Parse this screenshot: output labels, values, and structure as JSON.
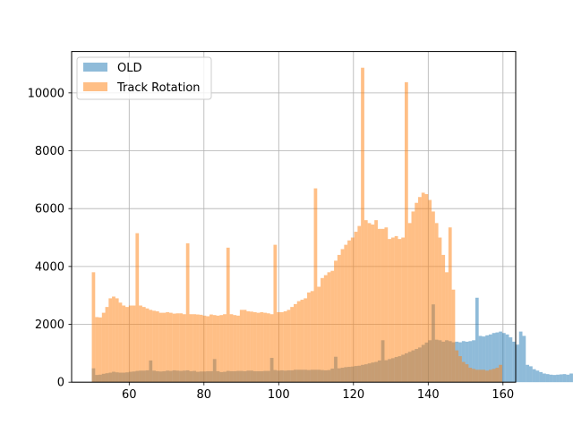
{
  "chart_data": {
    "type": "histogram",
    "xlim": [
      44.6,
      163.4
    ],
    "ylim": [
      0,
      11430
    ],
    "grid": true,
    "legend_position": "top-left",
    "x_ticks": [
      60,
      80,
      100,
      120,
      140,
      160
    ],
    "y_ticks": [
      0,
      2000,
      4000,
      6000,
      8000,
      10000
    ],
    "x_tick_labels": [
      "60",
      "80",
      "100",
      "120",
      "140",
      "160"
    ],
    "y_tick_labels": [
      "0",
      "2000",
      "4000",
      "6000",
      "8000",
      "10000"
    ],
    "bin_start": 50,
    "bin_width": 0.9,
    "series": [
      {
        "name": "OLD",
        "color": "#1f77b4",
        "alpha": 0.5,
        "values": [
          480,
          250,
          260,
          290,
          310,
          330,
          360,
          340,
          330,
          330,
          340,
          360,
          370,
          390,
          400,
          400,
          410,
          750,
          400,
          380,
          370,
          380,
          400,
          390,
          410,
          400,
          390,
          400,
          410,
          380,
          390,
          360,
          370,
          370,
          380,
          380,
          800,
          380,
          350,
          360,
          390,
          380,
          380,
          390,
          390,
          380,
          400,
          400,
          380,
          380,
          380,
          390,
          390,
          840,
          420,
          400,
          410,
          400,
          410,
          410,
          430,
          430,
          430,
          430,
          420,
          430,
          430,
          430,
          420,
          410,
          420,
          470,
          880,
          480,
          500,
          520,
          530,
          540,
          560,
          570,
          600,
          620,
          650,
          680,
          700,
          750,
          1450,
          760,
          800,
          830,
          870,
          900,
          950,
          1000,
          1050,
          1100,
          1150,
          1200,
          1290,
          1370,
          1450,
          2690,
          1470,
          1450,
          1400,
          1450,
          1420,
          1380,
          1400,
          1380,
          1420,
          1400,
          1420,
          1450,
          2920,
          1600,
          1580,
          1620,
          1650,
          1700,
          1720,
          1750,
          1700,
          1650,
          1550,
          1400,
          1300,
          1750,
          1600,
          600,
          550,
          450,
          400,
          350,
          300,
          280,
          260,
          250,
          260,
          270,
          280,
          260,
          300,
          290
        ]
      },
      {
        "name": "Track Rotation",
        "color": "#ff7f0e",
        "alpha": 0.5,
        "values": [
          3800,
          2250,
          2240,
          2400,
          2600,
          2900,
          2960,
          2900,
          2750,
          2650,
          2600,
          2650,
          2650,
          5150,
          2650,
          2600,
          2550,
          2500,
          2470,
          2450,
          2400,
          2400,
          2420,
          2400,
          2370,
          2380,
          2380,
          2350,
          4800,
          2350,
          2350,
          2340,
          2330,
          2300,
          2280,
          2340,
          2320,
          2300,
          2320,
          2350,
          4650,
          2350,
          2320,
          2300,
          2500,
          2500,
          2450,
          2440,
          2420,
          2400,
          2420,
          2400,
          2380,
          2350,
          4750,
          2420,
          2420,
          2450,
          2500,
          2600,
          2700,
          2800,
          2850,
          2900,
          3100,
          3150,
          6700,
          3300,
          3600,
          3700,
          3800,
          3850,
          4200,
          4400,
          4600,
          4750,
          4900,
          5000,
          5200,
          5400,
          10870,
          5600,
          5500,
          5450,
          5600,
          5300,
          5300,
          5350,
          4950,
          5000,
          5050,
          4950,
          5000,
          10370,
          5500,
          5900,
          6200,
          6400,
          6550,
          6500,
          6300,
          5900,
          5500,
          5000,
          4400,
          3800,
          5350,
          3200,
          1100,
          900,
          700,
          620,
          500,
          460,
          430,
          430,
          430,
          400,
          430,
          460,
          500,
          600
        ]
      }
    ]
  }
}
